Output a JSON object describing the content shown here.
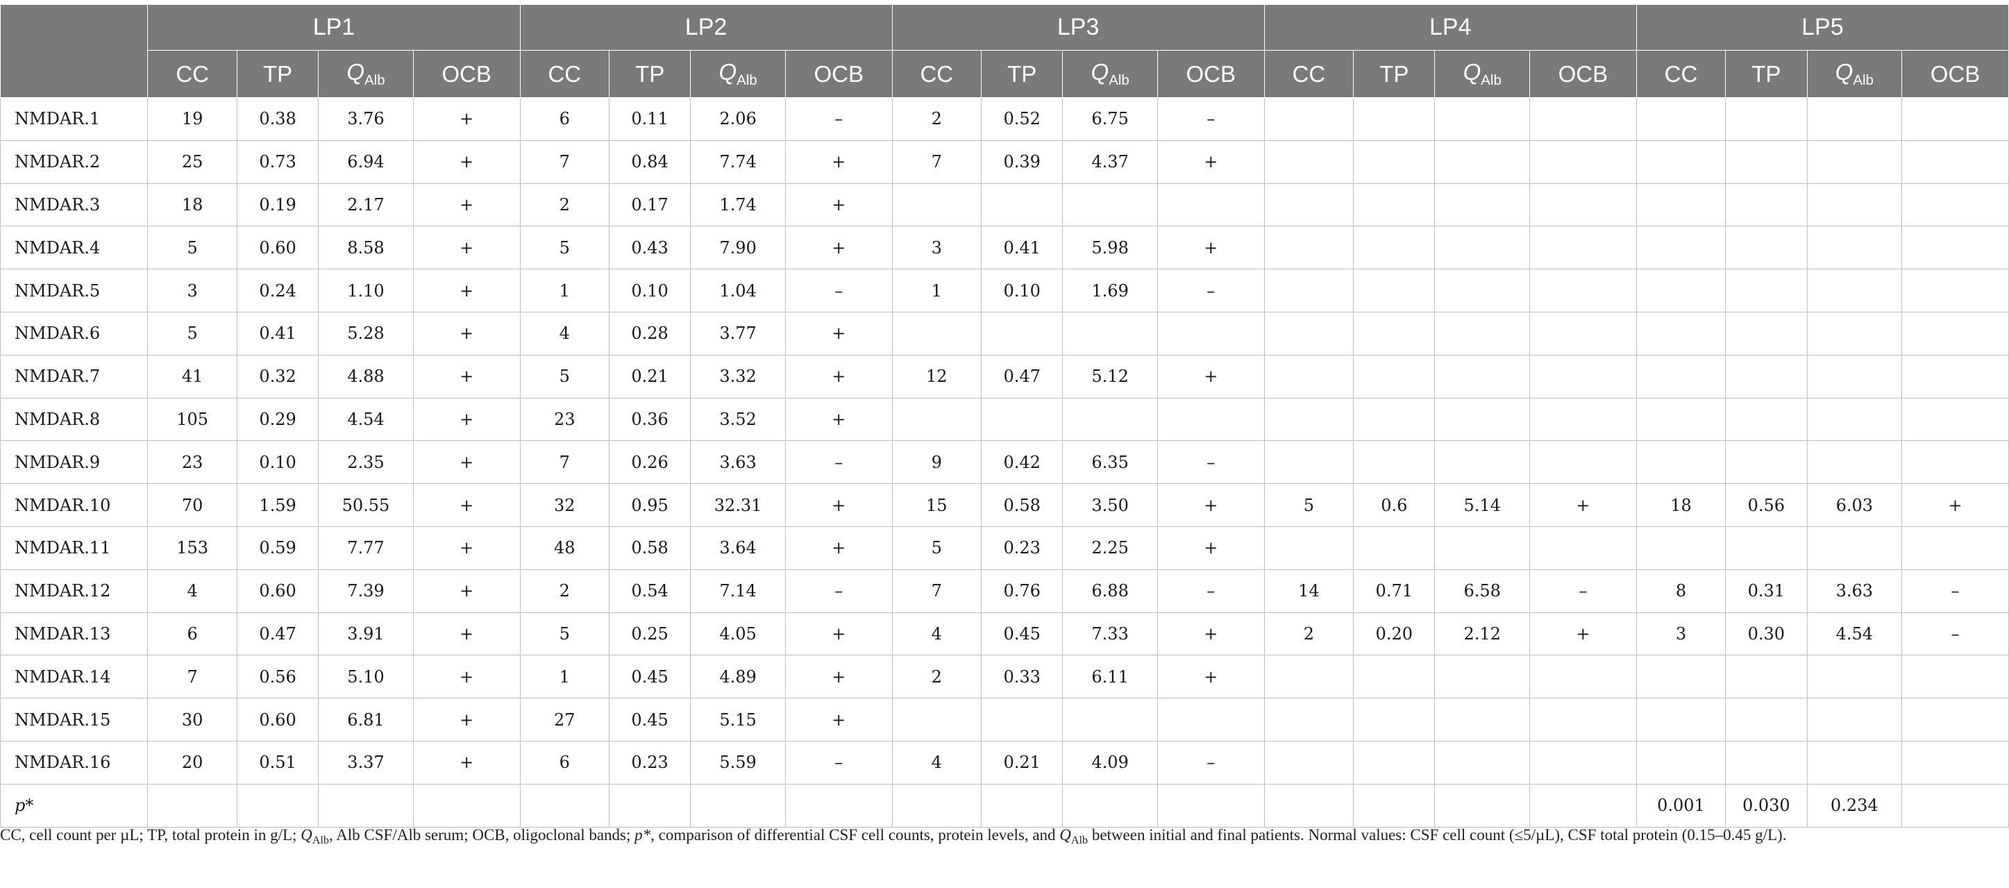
{
  "table": {
    "groups": [
      "LP1",
      "LP2",
      "LP3",
      "LP4",
      "LP5"
    ],
    "subcols": [
      "CC",
      "TP",
      "Q",
      "OCB"
    ],
    "q_subscript": "Alb",
    "rows": [
      {
        "label": "NMDAR.1",
        "cells": [
          "19",
          "0.38",
          "3.76",
          "+",
          "6",
          "0.11",
          "2.06",
          "–",
          "2",
          "0.52",
          "6.75",
          "–",
          "",
          "",
          "",
          "",
          "",
          "",
          "",
          ""
        ]
      },
      {
        "label": "NMDAR.2",
        "cells": [
          "25",
          "0.73",
          "6.94",
          "+",
          "7",
          "0.84",
          "7.74",
          "+",
          "7",
          "0.39",
          "4.37",
          "+",
          "",
          "",
          "",
          "",
          "",
          "",
          "",
          ""
        ]
      },
      {
        "label": "NMDAR.3",
        "cells": [
          "18",
          "0.19",
          "2.17",
          "+",
          "2",
          "0.17",
          "1.74",
          "+",
          "",
          "",
          "",
          "",
          "",
          "",
          "",
          "",
          "",
          "",
          "",
          ""
        ]
      },
      {
        "label": "NMDAR.4",
        "cells": [
          "5",
          "0.60",
          "8.58",
          "+",
          "5",
          "0.43",
          "7.90",
          "+",
          "3",
          "0.41",
          "5.98",
          "+",
          "",
          "",
          "",
          "",
          "",
          "",
          "",
          ""
        ]
      },
      {
        "label": "NMDAR.5",
        "cells": [
          "3",
          "0.24",
          "1.10",
          "+",
          "1",
          "0.10",
          "1.04",
          "–",
          "1",
          "0.10",
          "1.69",
          "–",
          "",
          "",
          "",
          "",
          "",
          "",
          "",
          ""
        ]
      },
      {
        "label": "NMDAR.6",
        "cells": [
          "5",
          "0.41",
          "5.28",
          "+",
          "4",
          "0.28",
          "3.77",
          "+",
          "",
          "",
          "",
          "",
          "",
          "",
          "",
          "",
          "",
          "",
          "",
          ""
        ]
      },
      {
        "label": "NMDAR.7",
        "cells": [
          "41",
          "0.32",
          "4.88",
          "+",
          "5",
          "0.21",
          "3.32",
          "+",
          "12",
          "0.47",
          "5.12",
          "+",
          "",
          "",
          "",
          "",
          "",
          "",
          "",
          ""
        ]
      },
      {
        "label": "NMDAR.8",
        "cells": [
          "105",
          "0.29",
          "4.54",
          "+",
          "23",
          "0.36",
          "3.52",
          "+",
          "",
          "",
          "",
          "",
          "",
          "",
          "",
          "",
          "",
          "",
          "",
          ""
        ]
      },
      {
        "label": "NMDAR.9",
        "cells": [
          "23",
          "0.10",
          "2.35",
          "+",
          "7",
          "0.26",
          "3.63",
          "–",
          "9",
          "0.42",
          "6.35",
          "–",
          "",
          "",
          "",
          "",
          "",
          "",
          "",
          ""
        ]
      },
      {
        "label": "NMDAR.10",
        "cells": [
          "70",
          "1.59",
          "50.55",
          "+",
          "32",
          "0.95",
          "32.31",
          "+",
          "15",
          "0.58",
          "3.50",
          "+",
          "5",
          "0.6",
          "5.14",
          "+",
          "18",
          "0.56",
          "6.03",
          "+"
        ]
      },
      {
        "label": "NMDAR.11",
        "cells": [
          "153",
          "0.59",
          "7.77",
          "+",
          "48",
          "0.58",
          "3.64",
          "+",
          "5",
          "0.23",
          "2.25",
          "+",
          "",
          "",
          "",
          "",
          "",
          "",
          "",
          ""
        ]
      },
      {
        "label": "NMDAR.12",
        "cells": [
          "4",
          "0.60",
          "7.39",
          "+",
          "2",
          "0.54",
          "7.14",
          "–",
          "7",
          "0.76",
          "6.88",
          "–",
          "14",
          "0.71",
          "6.58",
          "–",
          "8",
          "0.31",
          "3.63",
          "–"
        ]
      },
      {
        "label": "NMDAR.13",
        "cells": [
          "6",
          "0.47",
          "3.91",
          "+",
          "5",
          "0.25",
          "4.05",
          "+",
          "4",
          "0.45",
          "7.33",
          "+",
          "2",
          "0.20",
          "2.12",
          "+",
          "3",
          "0.30",
          "4.54",
          "–"
        ]
      },
      {
        "label": "NMDAR.14",
        "cells": [
          "7",
          "0.56",
          "5.10",
          "+",
          "1",
          "0.45",
          "4.89",
          "+",
          "2",
          "0.33",
          "6.11",
          "+",
          "",
          "",
          "",
          "",
          "",
          "",
          "",
          ""
        ]
      },
      {
        "label": "NMDAR.15",
        "cells": [
          "30",
          "0.60",
          "6.81",
          "+",
          "27",
          "0.45",
          "5.15",
          "+",
          "",
          "",
          "",
          "",
          "",
          "",
          "",
          "",
          "",
          "",
          "",
          ""
        ]
      },
      {
        "label": "NMDAR.16",
        "cells": [
          "20",
          "0.51",
          "3.37",
          "+",
          "6",
          "0.23",
          "5.59",
          "–",
          "4",
          "0.21",
          "4.09",
          "–",
          "",
          "",
          "",
          "",
          "",
          "",
          "",
          ""
        ]
      }
    ],
    "p_row": {
      "label": "p*",
      "cells": [
        "",
        "",
        "",
        "",
        "",
        "",
        "",
        "",
        "",
        "",
        "",
        "",
        "",
        "",
        "",
        "",
        "0.001",
        "0.030",
        "0.234",
        ""
      ]
    }
  },
  "footnote": {
    "part1": "CC, cell count per µL; TP, total protein in g/L; ",
    "q": "Q",
    "q_sub": "Alb",
    "part2": ", Alb CSF/Alb serum; OCB, oligoclonal bands; ",
    "p": "p*",
    "part3": ", comparison of differential CSF cell counts, protein levels, and ",
    "q2": "Q",
    "q2_sub": "Alb",
    "part4": " between initial and final patients. Normal values: CSF cell count (≤5/µL), CSF total protein (0.15–0.45 g/L)."
  }
}
